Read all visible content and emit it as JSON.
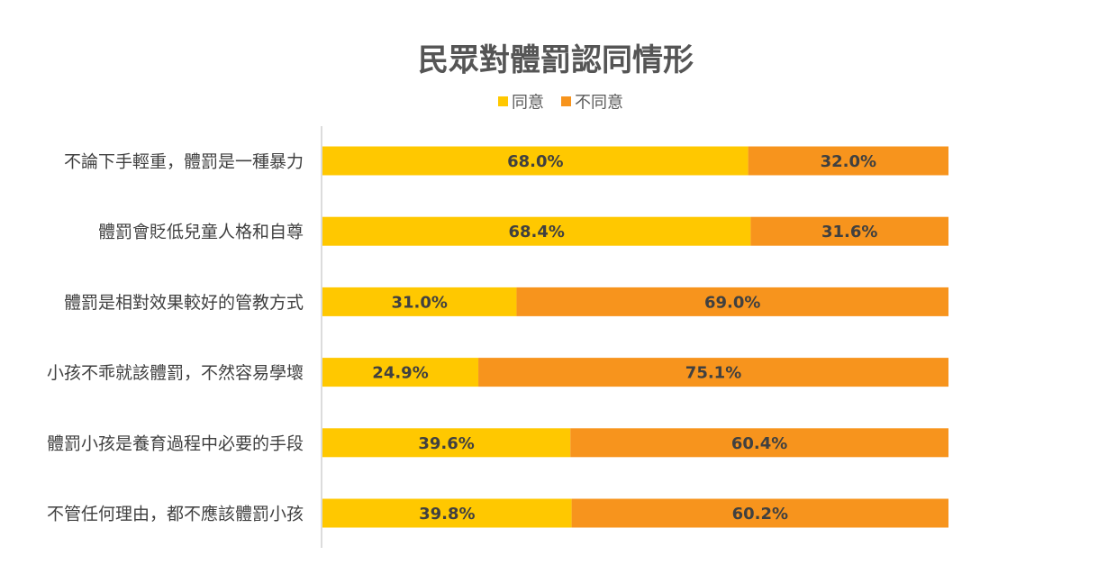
{
  "chart_data": {
    "type": "bar",
    "orientation": "horizontal",
    "stacked": "100%",
    "title": "民眾對體罰認同情形",
    "categories": [
      "不論下手輕重，體罰是一種暴力",
      "體罰會貶低兒童人格和自尊",
      "體罰是相對效果較好的管教方式",
      "小孩不乖就該體罰，不然容易學壞",
      "體罰小孩是養育過程中必要的手段",
      "不管任何理由，都不應該體罰小孩"
    ],
    "series": [
      {
        "name": "同意",
        "values": [
          68.0,
          68.4,
          31.0,
          24.9,
          39.6,
          39.8
        ],
        "color": "#FFC800"
      },
      {
        "name": "不同意",
        "values": [
          32.0,
          31.6,
          69.0,
          75.1,
          60.4,
          60.2
        ],
        "color": "#F7941D"
      }
    ],
    "value_format": "percent_1dp",
    "legend_position": "top",
    "xlim": [
      0,
      100
    ],
    "grid": false
  }
}
